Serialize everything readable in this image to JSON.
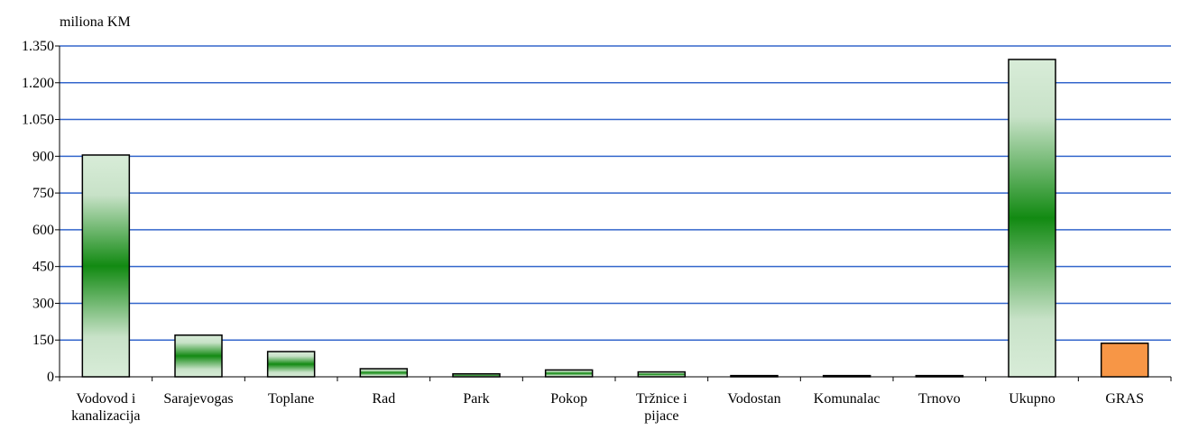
{
  "chart_data": {
    "type": "bar",
    "title": "",
    "ylabel": "miliona KM",
    "xlabel": "",
    "ylim": [
      0,
      1350
    ],
    "yticks": [
      0,
      150,
      300,
      450,
      600,
      750,
      900,
      1050,
      1200,
      1350
    ],
    "ytick_labels": [
      "0",
      "150",
      "300",
      "450",
      "600",
      "750",
      "900",
      "1.050",
      "1.200",
      "1.350"
    ],
    "grid": true,
    "categories": [
      [
        "Vodovod i",
        "kanalizacija"
      ],
      [
        "Sarajevogas"
      ],
      [
        "Toplane"
      ],
      [
        "Rad"
      ],
      [
        "Park"
      ],
      [
        "Pokop"
      ],
      [
        "Tržnice i",
        "pijace"
      ],
      [
        "Vodostan"
      ],
      [
        "Komunalac"
      ],
      [
        "Trnovo"
      ],
      [
        "Ukupno"
      ],
      [
        "GRAS"
      ]
    ],
    "values": [
      905,
      170,
      103,
      33,
      12,
      28,
      20,
      5,
      5,
      5,
      1295,
      137
    ],
    "colors": {
      "grid": "#3366cc",
      "bar_outline": "#000000",
      "gradient_edge": "#d8ecd8",
      "gradient_center": "#128a12",
      "gras": "#f79646"
    }
  }
}
